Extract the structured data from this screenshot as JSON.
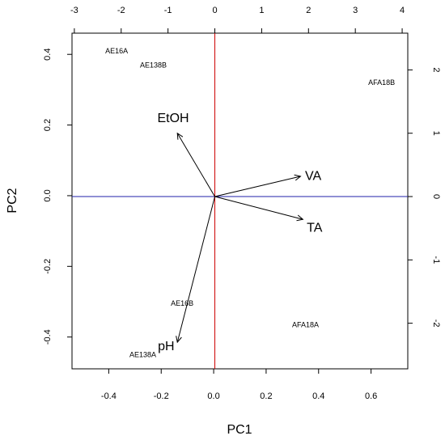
{
  "chart_data": {
    "type": "scatter",
    "subtype": "biplot",
    "title": "",
    "xlabel": "PC1",
    "ylabel": "PC2",
    "xlim": [
      -0.54,
      0.74
    ],
    "ylim": [
      -0.49,
      0.46
    ],
    "xticks": [
      -0.4,
      -0.2,
      0.0,
      0.2,
      0.4,
      0.6
    ],
    "yticks": [
      -0.4,
      -0.2,
      0.0,
      0.2,
      0.4
    ],
    "xtick_labels": [
      "-0.4",
      "-0.2",
      "0.0",
      "0.2",
      "0.4",
      "0.6"
    ],
    "ytick_labels": [
      "-0.4",
      "-0.2",
      "0.0",
      "0.2",
      "0.4"
    ],
    "top_axis": {
      "lim": [
        -3.05,
        4.12
      ],
      "ticks": [
        -3,
        -2,
        -1,
        0,
        1,
        2,
        3,
        4
      ],
      "labels": [
        "-3",
        "-2",
        "-1",
        "0",
        "1",
        "2",
        "3",
        "4"
      ]
    },
    "right_axis": {
      "lim": [
        -2.72,
        2.58
      ],
      "ticks": [
        -2,
        -1,
        0,
        1,
        2
      ],
      "labels": [
        "-2",
        "-1",
        "0",
        "1",
        "2"
      ]
    },
    "reference_lines": {
      "vertical_x": 0.0,
      "vertical_color": "#cc0000",
      "horizontal_y": 0.0,
      "horizontal_color": "#2222aa"
    },
    "observations": [
      {
        "label": "AE16A",
        "x": -0.37,
        "y": 0.41
      },
      {
        "label": "AE138B",
        "x": -0.23,
        "y": 0.37
      },
      {
        "label": "AFA18B",
        "x": 0.64,
        "y": 0.32
      },
      {
        "label": "AE16B",
        "x": -0.12,
        "y": -0.305
      },
      {
        "label": "AFA18A",
        "x": 0.35,
        "y": -0.365
      },
      {
        "label": "AE138A",
        "x": -0.27,
        "y": -0.45
      }
    ],
    "variables": [
      {
        "label": "EtOH",
        "x": -0.8,
        "y": 1.0,
        "label_x": -0.89,
        "label_y": 1.25
      },
      {
        "label": "VA",
        "x": 1.83,
        "y": 0.32,
        "label_x": 2.1,
        "label_y": 0.34
      },
      {
        "label": "TA",
        "x": 1.88,
        "y": -0.36,
        "label_x": 2.13,
        "label_y": -0.48
      },
      {
        "label": "pH",
        "x": -0.8,
        "y": -2.3,
        "label_x": -1.04,
        "label_y": -2.35
      }
    ],
    "colors": {
      "points_text": "#000000",
      "arrows": "#000000"
    }
  }
}
